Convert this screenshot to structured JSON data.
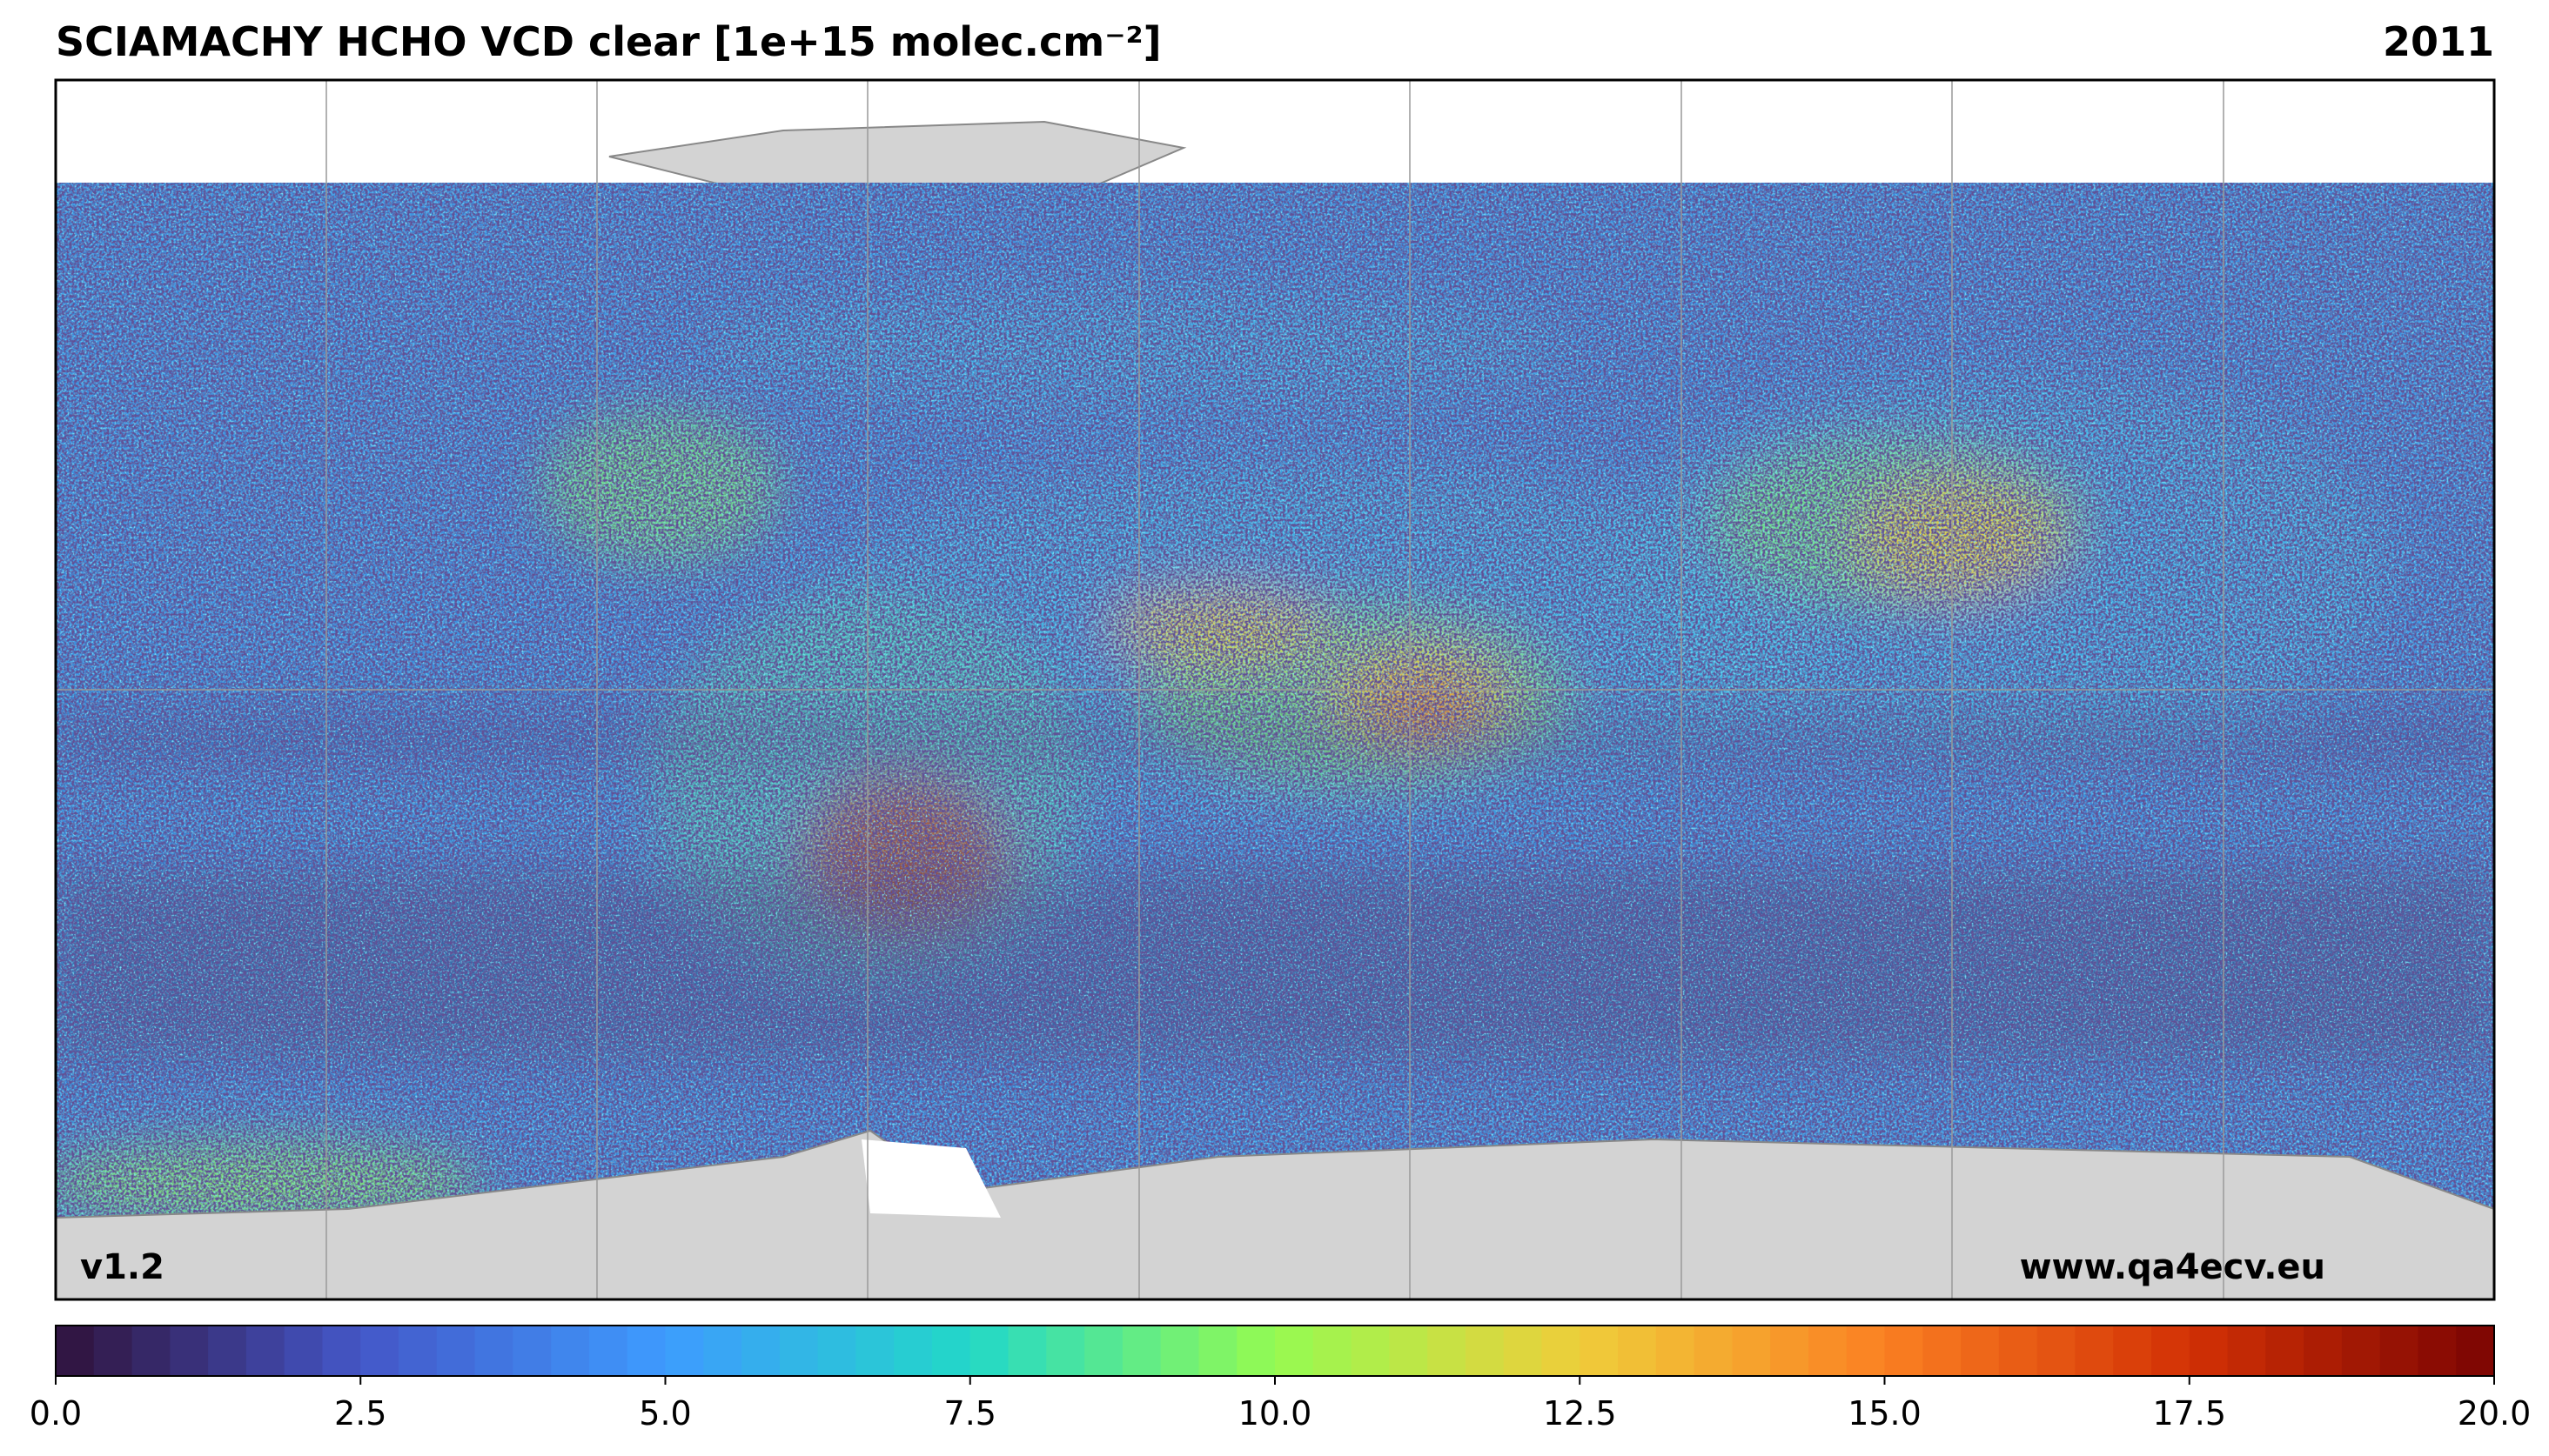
{
  "header": {
    "title": "SCIAMACHY HCHO VCD clear [1e+15 molec.cm⁻²]",
    "year": "2011"
  },
  "map": {
    "version": "v1.2",
    "website": "www.qa4ecv.eu"
  },
  "colorbar": {
    "range": [
      0,
      20
    ],
    "ticks": [
      {
        "value": 0,
        "label": "0.0"
      },
      {
        "value": 2.5,
        "label": "2.5"
      },
      {
        "value": 5,
        "label": "5.0"
      },
      {
        "value": 7.5,
        "label": "7.5"
      },
      {
        "value": 10,
        "label": "10.0"
      },
      {
        "value": 12.5,
        "label": "12.5"
      },
      {
        "value": 15,
        "label": "15.0"
      },
      {
        "value": 17.5,
        "label": "17.5"
      },
      {
        "value": 20,
        "label": "20.0"
      }
    ],
    "colors": [
      "#30123b",
      "#4457c8",
      "#3e9bfe",
      "#22d8c8",
      "#95fb51",
      "#efcd3a",
      "#fb8022",
      "#d23105",
      "#7a0403"
    ]
  }
}
